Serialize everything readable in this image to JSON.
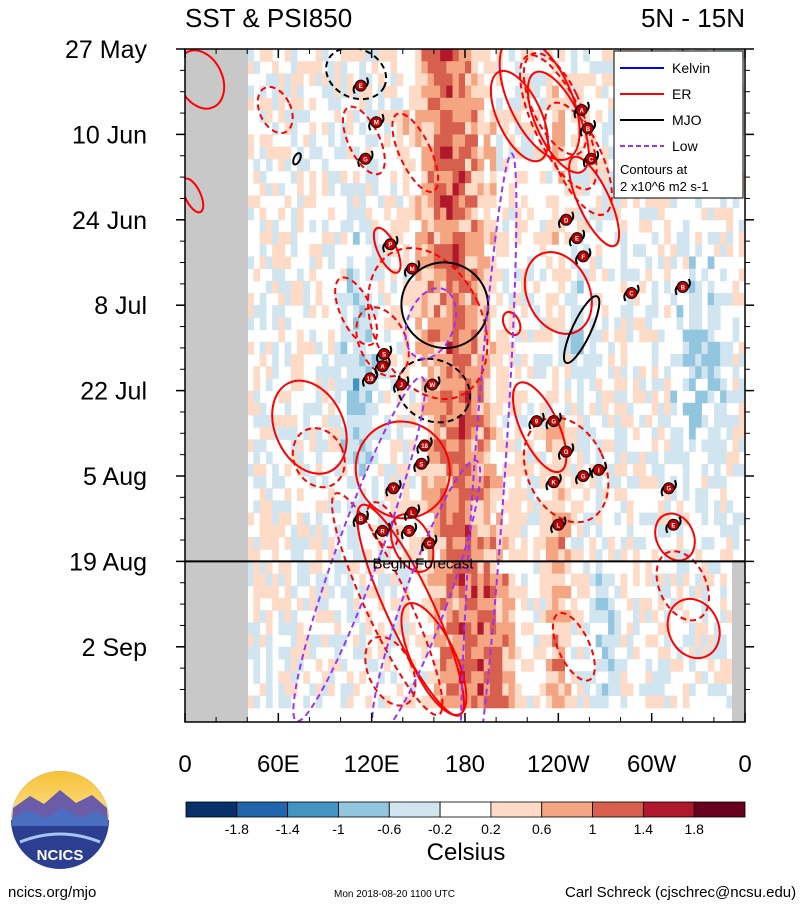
{
  "chart_data": {
    "type": "heatmap",
    "title_left": "SST & PSI850",
    "title_right": "5N - 15N",
    "x_range": [
      0,
      360
    ],
    "x_ticks": [
      {
        "lon": 0,
        "label": "0"
      },
      {
        "lon": 60,
        "label": "60E"
      },
      {
        "lon": 120,
        "label": "120E"
      },
      {
        "lon": 180,
        "label": "180"
      },
      {
        "lon": 240,
        "label": "120W"
      },
      {
        "lon": 300,
        "label": "60W"
      },
      {
        "lon": 360,
        "label": "0"
      }
    ],
    "y_range_days": [
      0,
      108
    ],
    "y_ticks": [
      {
        "day": 0,
        "label": "27 May"
      },
      {
        "day": 14,
        "label": "10 Jun"
      },
      {
        "day": 28,
        "label": "24 Jun"
      },
      {
        "day": 42,
        "label": "8 Jul"
      },
      {
        "day": 56,
        "label": "22 Jul"
      },
      {
        "day": 70,
        "label": "5 Aug"
      },
      {
        "day": 84,
        "label": "19 Aug"
      },
      {
        "day": 98,
        "label": "2 Sep"
      }
    ],
    "forecast_start_day": 84,
    "forecast_label": "Begin Forecast",
    "colorbar": {
      "unit": "Celsius",
      "labels": [
        "-1.8",
        "-1.4",
        "-1",
        "-0.6",
        "-0.2",
        "0.2",
        "0.6",
        "1",
        "1.4",
        "1.8"
      ],
      "colors": [
        "#08306b",
        "#2166ac",
        "#4393c3",
        "#92c5de",
        "#d1e5f0",
        "#ffffff",
        "#fddbc7",
        "#f4a582",
        "#d6604d",
        "#b2182b",
        "#67001f"
      ]
    },
    "legend": {
      "entries": [
        {
          "name": "Kelvin",
          "color": "#0000ff",
          "dash": false
        },
        {
          "name": "ER",
          "color": "#ff0000",
          "dash": false
        },
        {
          "name": "MJO",
          "color": "#000000",
          "dash": false
        },
        {
          "name": "Low",
          "color": "#9933ff",
          "dash": true
        }
      ],
      "note_line1": "Contours at",
      "note_line2": "2 x10^6 m2 s-1"
    },
    "warm_band": {
      "center_lon": 172,
      "description": "positive SST anomaly band near the dateline"
    },
    "storms": [
      {
        "id": "E",
        "lon": 113,
        "day": 6
      },
      {
        "id": "M",
        "lon": 123,
        "day": 12
      },
      {
        "id": "G",
        "lon": 116,
        "day": 18
      },
      {
        "id": "A",
        "lon": 255,
        "day": 10
      },
      {
        "id": "B",
        "lon": 259,
        "day": 13
      },
      {
        "id": "C",
        "lon": 261,
        "day": 18
      },
      {
        "id": "D",
        "lon": 245,
        "day": 28
      },
      {
        "id": "E",
        "lon": 252,
        "day": 31
      },
      {
        "id": "F",
        "lon": 256,
        "day": 34
      },
      {
        "id": "P",
        "lon": 132,
        "day": 32
      },
      {
        "id": "M",
        "lon": 146,
        "day": 36
      },
      {
        "id": "C",
        "lon": 287,
        "day": 40
      },
      {
        "id": "B",
        "lon": 320,
        "day": 39
      },
      {
        "id": "S",
        "lon": 128,
        "day": 50
      },
      {
        "id": "A",
        "lon": 127,
        "day": 52
      },
      {
        "id": "19",
        "lon": 119,
        "day": 54
      },
      {
        "id": "J",
        "lon": 139,
        "day": 55
      },
      {
        "id": "W",
        "lon": 159,
        "day": 55
      },
      {
        "id": "9",
        "lon": 226,
        "day": 61
      },
      {
        "id": "G",
        "lon": 237,
        "day": 61
      },
      {
        "id": "18",
        "lon": 154,
        "day": 65
      },
      {
        "id": "S",
        "lon": 152,
        "day": 68
      },
      {
        "id": "G",
        "lon": 245,
        "day": 66
      },
      {
        "id": "Y",
        "lon": 134,
        "day": 72
      },
      {
        "id": "L",
        "lon": 146,
        "day": 76
      },
      {
        "id": "B",
        "lon": 113,
        "day": 77
      },
      {
        "id": "R",
        "lon": 127,
        "day": 79
      },
      {
        "id": "S",
        "lon": 144,
        "day": 79
      },
      {
        "id": "C",
        "lon": 157,
        "day": 81
      },
      {
        "id": "K",
        "lon": 237,
        "day": 71
      },
      {
        "id": "G",
        "lon": 256,
        "day": 70
      },
      {
        "id": "I",
        "lon": 266,
        "day": 69
      },
      {
        "id": "G",
        "lon": 311,
        "day": 72
      },
      {
        "id": "L",
        "lon": 240,
        "day": 78
      },
      {
        "id": "E",
        "lon": 314,
        "day": 78
      }
    ]
  },
  "footer": {
    "logo_text": "NCICS",
    "url": "ncics.org/mjo",
    "timestamp": "Mon 2018-08-20 1100 UTC",
    "credit": "Carl Schreck (cjschrec@ncsu.edu)"
  }
}
